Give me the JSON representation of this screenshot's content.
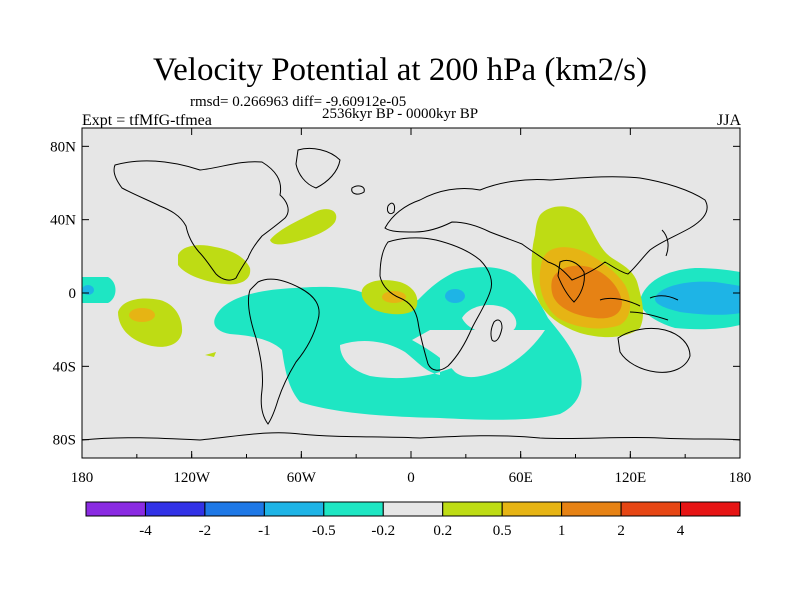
{
  "title": "Velocity Potential at 200 hPa (km2/s)",
  "rmsd_line": "rmsd= 0.266963 diff= -9.60912e-05",
  "period": "2536kyr BP - 0000kyr BP",
  "experiment": "Expt = tfMfG-tfmea",
  "season": "JJA",
  "lat_ticks": [
    {
      "label": "80N",
      "value": 80
    },
    {
      "label": "40N",
      "value": 40
    },
    {
      "label": "0",
      "value": 0
    },
    {
      "label": "40S",
      "value": -40
    },
    {
      "label": "80S",
      "value": -80
    }
  ],
  "lon_ticks": [
    {
      "label": "180",
      "value": -180
    },
    {
      "label": "120W",
      "value": -120
    },
    {
      "label": "60W",
      "value": -60
    },
    {
      "label": "0",
      "value": 0
    },
    {
      "label": "60E",
      "value": 60
    },
    {
      "label": "120E",
      "value": 120
    },
    {
      "label": "180",
      "value": 180
    }
  ],
  "colorbar": {
    "colors": [
      "#8a2be2",
      "#3232e6",
      "#1e78e6",
      "#1eb4e6",
      "#1ee6c3",
      "#e6e6e6",
      "#bedc14",
      "#e6b414",
      "#e68214",
      "#e64614",
      "#e61414"
    ],
    "labels": [
      "-4",
      "-2",
      "-1",
      "-0.5",
      "-0.2",
      "0.2",
      "0.5",
      "1",
      "2",
      "4"
    ]
  },
  "colors": {
    "background_field": "#e6e6e6",
    "neg_0_2": "#1ee6c3",
    "neg_0_5": "#1eb4e6",
    "pos_0_2": "#bedc14",
    "pos_0_5": "#e6b414",
    "pos_1": "#e68214"
  }
}
